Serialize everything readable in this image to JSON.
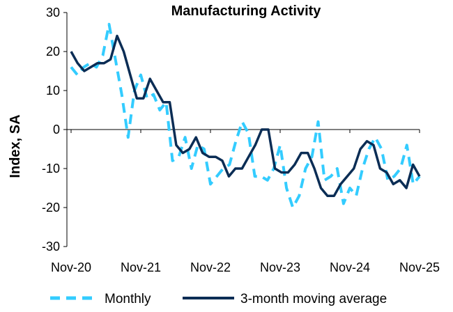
{
  "chart_data": {
    "type": "line",
    "title": "Manufacturing Activity",
    "ylabel": "Index, SA",
    "xlabel": "",
    "ylim": [
      -30,
      30
    ],
    "yticks": [
      -30,
      -20,
      -10,
      0,
      10,
      20,
      30
    ],
    "x_tick_labels": [
      {
        "label": "Nov-20",
        "index": 0
      },
      {
        "label": "Nov-21",
        "index": 12
      },
      {
        "label": "Nov-22",
        "index": 24
      },
      {
        "label": "Nov-23",
        "index": 36
      },
      {
        "label": "Nov-24",
        "index": 48
      },
      {
        "label": "Nov-25",
        "index": 60
      }
    ],
    "grid": false,
    "legend": "bottom",
    "series": [
      {
        "name": "Monthly",
        "color": "#33ccff",
        "style": "dashed",
        "values": [
          16,
          14,
          16,
          17,
          16,
          19,
          27,
          18,
          9,
          -2,
          10,
          14,
          8,
          9,
          5,
          7,
          -8,
          -7,
          -2,
          -10,
          -4,
          -5,
          -14,
          -12,
          -10,
          -9,
          -3,
          2,
          -1,
          -12,
          -12,
          -13,
          -10,
          -4,
          -15,
          -20,
          -17,
          -10,
          -7,
          2,
          -13,
          -12,
          -10,
          -19,
          -15,
          -17,
          -10,
          -5,
          -2,
          -5,
          -13,
          -12,
          -10,
          -4,
          -14,
          -12
        ]
      },
      {
        "name": "3-month moving average",
        "color": "#0b2d55",
        "style": "solid",
        "values": [
          20,
          17,
          15,
          16,
          17,
          17,
          18,
          24,
          20,
          14,
          8,
          8,
          13,
          10,
          7,
          7,
          -4,
          -6,
          -5,
          -2,
          -6,
          -7,
          -7,
          -8,
          -12,
          -10,
          -10,
          -7,
          -4,
          0,
          0,
          -10,
          -11,
          -11,
          -9,
          -6,
          -6,
          -10,
          -15,
          -17,
          -17,
          -14,
          -12,
          -10,
          -5,
          -3,
          -4,
          -10,
          -11,
          -14,
          -13,
          -15,
          -9,
          -12
        ]
      }
    ]
  }
}
